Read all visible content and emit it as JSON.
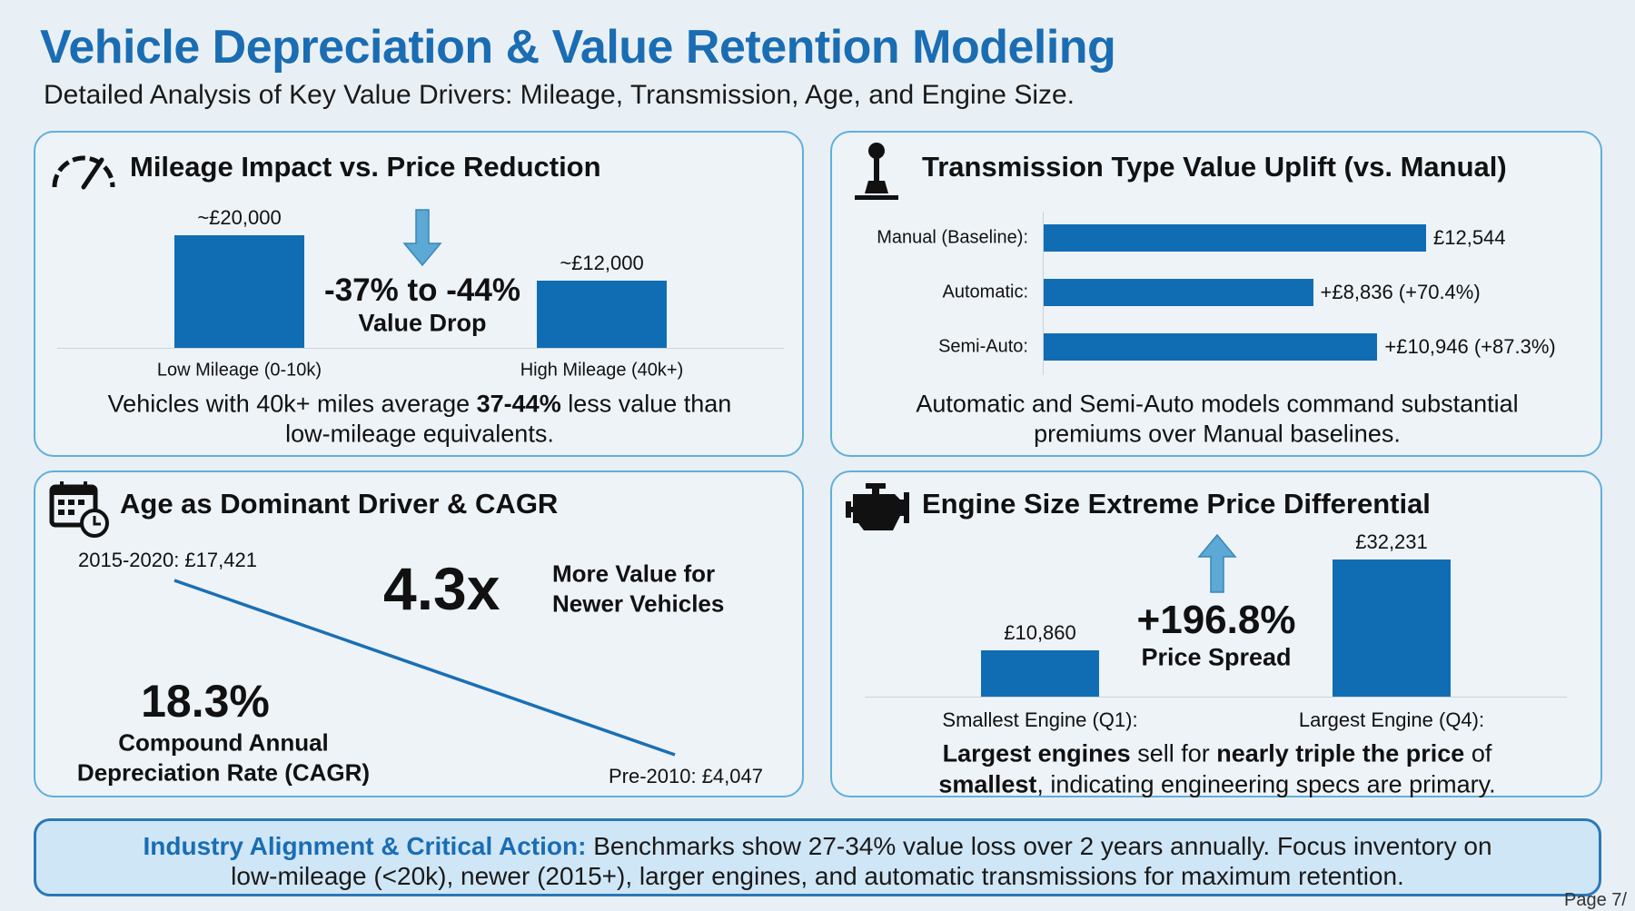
{
  "header": {
    "title": "Vehicle Depreciation & Value Retention Modeling",
    "subtitle": "Detailed Analysis of Key Value Drivers: Mileage, Transmission, Age, and Engine Size."
  },
  "colors": {
    "accent": "#1a6db3",
    "bar": "#116db3",
    "arrow": "#5ba9d4",
    "panel_border": "#62aedb",
    "footer_bg": "#cfe6f6"
  },
  "mileage": {
    "title": "Mileage Impact vs. Price Reduction",
    "icon": "speedometer-icon",
    "drop_value": "-37% to -44%",
    "drop_label": "Value Drop",
    "desc_line1": [
      "Vehicles with 40k+ miles average ",
      "37-44%",
      " less value than"
    ],
    "desc_line2": "low-mileage equivalents."
  },
  "transmission": {
    "title": "Transmission Type Value Uplift (vs. Manual)",
    "icon": "gear-shift-icon",
    "desc_line1": "Automatic and Semi-Auto models command substantial",
    "desc_line2": "premiums over Manual baselines."
  },
  "age": {
    "title": "Age as Dominant Driver & CAGR",
    "icon": "calendar-clock-icon",
    "multiplier": "4.3x",
    "multiplier_label1": "More Value for",
    "multiplier_label2": "Newer Vehicles",
    "cagr_value": "18.3%",
    "cagr_label1": "Compound Annual",
    "cagr_label2": "Depreciation Rate (CAGR)"
  },
  "engine": {
    "title": "Engine Size Extreme Price Differential",
    "icon": "engine-icon",
    "spread_value": "+196.8%",
    "spread_label": "Price Spread",
    "desc_line1": [
      "Largest engines",
      " sell for ",
      "nearly triple the price",
      " of"
    ],
    "desc_line2": [
      "smallest",
      ", indicating engineering specs are primary."
    ]
  },
  "footer": {
    "heading": "Industry Alignment & Critical Action:",
    "line1": " Benchmarks show 27-34% value loss over 2 years annually. Focus inventory on",
    "line2": "low-mileage (<20k), newer (2015+), larger engines, and automatic transmissions for maximum retention.",
    "page": "Page 7/"
  },
  "chart_data": [
    {
      "type": "bar",
      "categories": [
        "Low Mileage (0-10k)",
        "High Mileage (40k+)"
      ],
      "values": [
        20000,
        12000
      ],
      "data_labels": [
        "~£20,000",
        "~£12,000"
      ]
    },
    {
      "type": "bar",
      "orientation": "horizontal",
      "categories": [
        "Manual (Baseline):",
        "Automatic:",
        "Semi-Auto:"
      ],
      "values": [
        12544,
        8836,
        10946
      ],
      "data_labels": [
        "£12,544",
        "+£8,836 (+70.4%)",
        "+£10,946 (+87.3%)"
      ]
    },
    {
      "type": "line",
      "categories": [
        "2015-2020",
        "Pre-2010"
      ],
      "values": [
        17421,
        4047
      ],
      "data_labels": [
        "2015-2020: £17,421",
        "Pre-2010: £4,047"
      ]
    },
    {
      "type": "bar",
      "categories": [
        "Smallest Engine (Q1):",
        "Largest Engine (Q4):"
      ],
      "values": [
        10860,
        32231
      ],
      "data_labels": [
        "£10,860",
        "£32,231"
      ]
    }
  ]
}
